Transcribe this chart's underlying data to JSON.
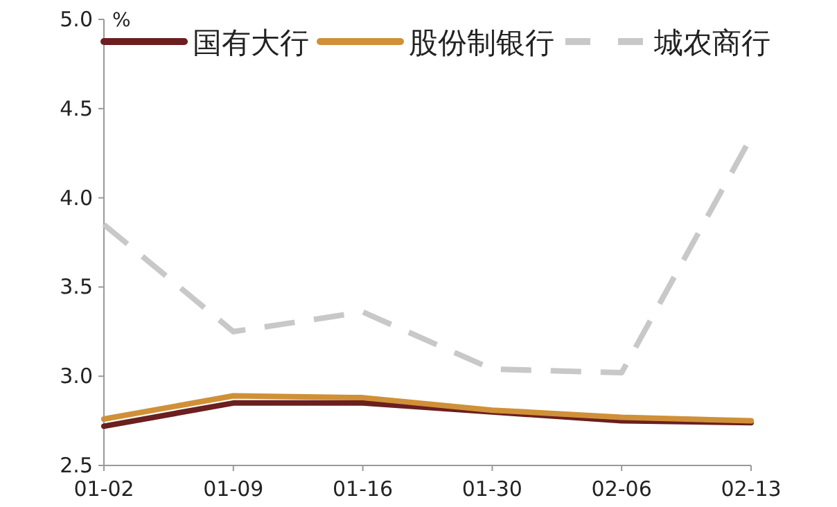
{
  "chart_data": {
    "type": "line",
    "ylabel": "%",
    "categories": [
      "01-02",
      "01-09",
      "01-16",
      "01-30",
      "02-06",
      "02-13"
    ],
    "series": [
      {
        "name": "国有大行",
        "color": "#6b1f1f",
        "line_style": "solid",
        "values": [
          2.72,
          2.85,
          2.85,
          2.8,
          2.75,
          2.74
        ]
      },
      {
        "name": "股份制银行",
        "color": "#d09038",
        "line_style": "solid",
        "values": [
          2.76,
          2.89,
          2.88,
          2.81,
          2.77,
          2.75
        ]
      },
      {
        "name": "城农商行",
        "color": "#c8c8c8",
        "line_style": "dashed",
        "values": [
          3.85,
          3.25,
          3.36,
          3.04,
          3.02,
          4.34
        ]
      }
    ],
    "ylim": [
      2.5,
      5.0
    ],
    "yticks": [
      {
        "value": 2.5,
        "label": "2.5"
      },
      {
        "value": 3.0,
        "label": "3.0"
      },
      {
        "value": 3.5,
        "label": "3.5"
      },
      {
        "value": 4.0,
        "label": "4.0"
      },
      {
        "value": 4.5,
        "label": "4.5"
      },
      {
        "value": 5.0,
        "label": "5.0"
      }
    ],
    "legend": "top",
    "grid": false
  }
}
